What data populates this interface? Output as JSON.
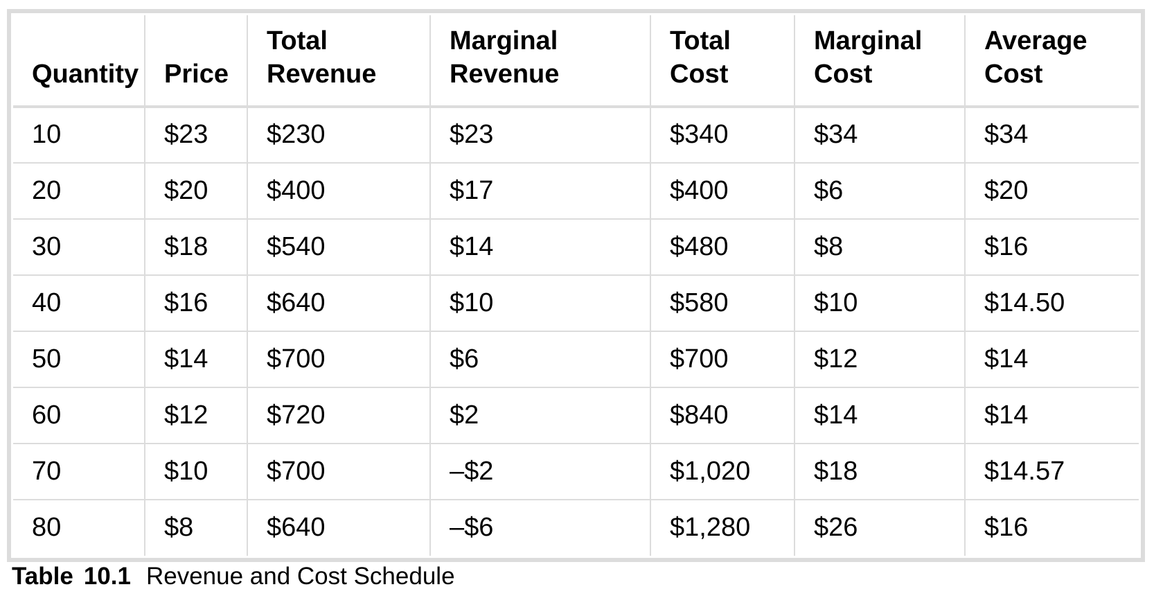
{
  "colors": {
    "background": "#ffffff",
    "border_gray": "#dcdcdc",
    "text": "#000000"
  },
  "caption": {
    "label": "Table",
    "number": "10.1",
    "title": "Revenue and Cost Schedule"
  },
  "table": {
    "columns": [
      "Quantity",
      "Price",
      "Total\nRevenue",
      "Marginal\nRevenue",
      "Total\nCost",
      "Marginal\nCost",
      "Average\nCost"
    ],
    "rows": [
      [
        "10",
        "$23",
        "$230",
        "$23",
        "$340",
        "$34",
        "$34"
      ],
      [
        "20",
        "$20",
        "$400",
        "$17",
        "$400",
        "$6",
        "$20"
      ],
      [
        "30",
        "$18",
        "$540",
        "$14",
        "$480",
        "$8",
        "$16"
      ],
      [
        "40",
        "$16",
        "$640",
        "$10",
        "$580",
        "$10",
        "$14.50"
      ],
      [
        "50",
        "$14",
        "$700",
        "$6",
        "$700",
        "$12",
        "$14"
      ],
      [
        "60",
        "$12",
        "$720",
        "$2",
        "$840",
        "$14",
        "$14"
      ],
      [
        "70",
        "$10",
        "$700",
        "–$2",
        "$1,020",
        "$18",
        "$14.57"
      ],
      [
        "80",
        "$8",
        "$640",
        "–$6",
        "$1,280",
        "$26",
        "$16"
      ]
    ]
  },
  "chart_data": {
    "type": "table",
    "title": "Table 10.1 Revenue and Cost Schedule",
    "columns": [
      "Quantity",
      "Price",
      "Total Revenue",
      "Marginal Revenue",
      "Total Cost",
      "Marginal Cost",
      "Average Cost"
    ],
    "rows": [
      [
        10,
        23,
        230,
        23,
        340,
        34,
        34
      ],
      [
        20,
        20,
        400,
        17,
        400,
        6,
        20
      ],
      [
        30,
        18,
        540,
        14,
        480,
        8,
        16
      ],
      [
        40,
        16,
        640,
        10,
        580,
        10,
        14.5
      ],
      [
        50,
        14,
        700,
        6,
        700,
        12,
        14
      ],
      [
        60,
        12,
        720,
        2,
        840,
        14,
        14
      ],
      [
        70,
        10,
        700,
        -2,
        1020,
        18,
        14.57
      ],
      [
        80,
        8,
        640,
        -6,
        1280,
        26,
        16
      ]
    ],
    "units": "US dollars except Quantity",
    "layout_hints": {
      "header_position": "top",
      "grid": true,
      "caption_position": "bottom-left"
    }
  }
}
